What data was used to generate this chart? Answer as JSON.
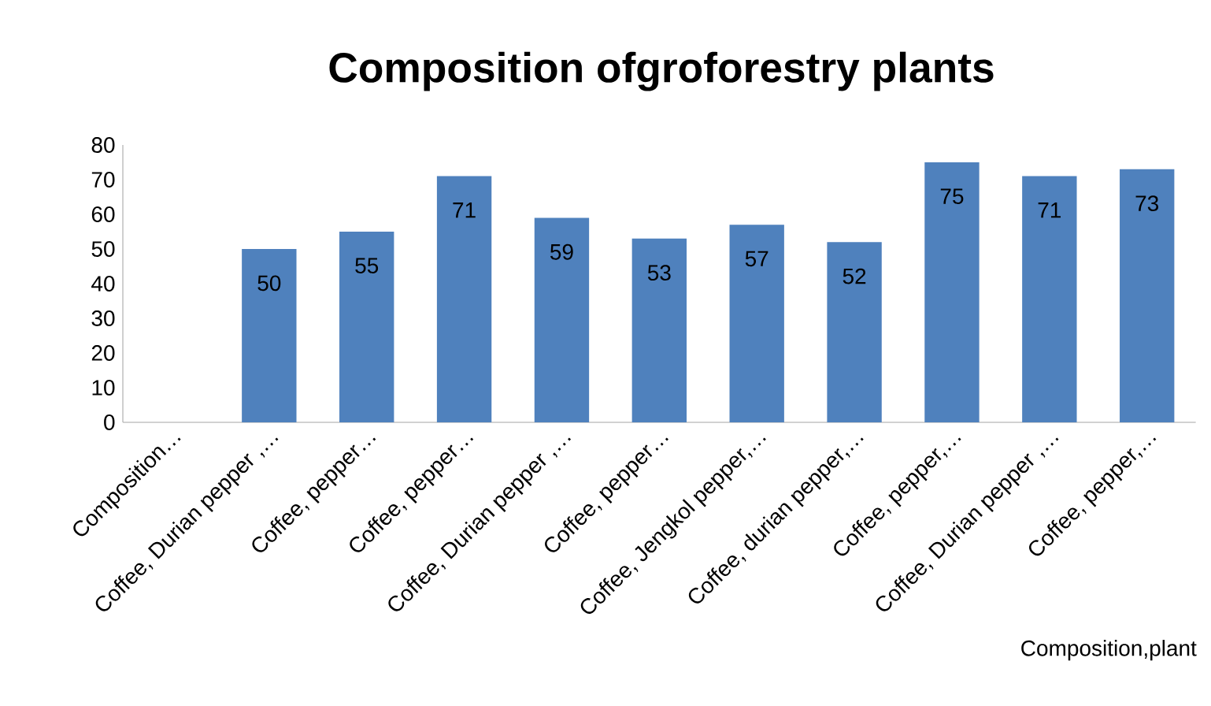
{
  "chart_data": {
    "type": "bar",
    "title": "Composition ofgroforestry plants",
    "xlabel": "Composition,plant",
    "categories": [
      "Composition…",
      "Coffee, Durian pepper ,…",
      "Coffee, pepper…",
      "Coffee, pepper…",
      "Coffee, Durian pepper ,…",
      "Coffee, pepper…",
      "Coffee, Jengkol pepper,…",
      "Coffee, durian pepper,…",
      "Coffee, pepper,…",
      "Coffee, Durian pepper ,…",
      "Coffee, pepper,…"
    ],
    "values": [
      null,
      50,
      55,
      71,
      59,
      53,
      57,
      52,
      75,
      71,
      73
    ],
    "color": "#4f81bd",
    "ylim": [
      0,
      80
    ],
    "yticks": [
      0,
      10,
      20,
      30,
      40,
      50,
      60,
      70,
      80
    ],
    "data_labels": true
  }
}
